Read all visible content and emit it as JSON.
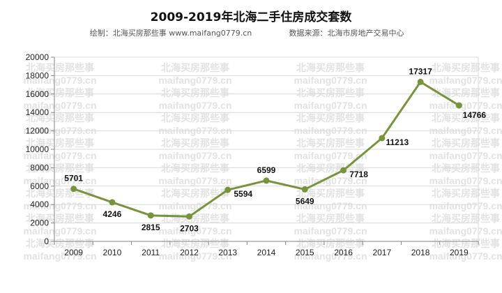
{
  "header": {
    "title": "2009-2019年北海二手住房成交套数",
    "credit": "绘制：北海买房那些事 www.maifang0779.cn",
    "source": "数据来源：北海市房地产交易中心"
  },
  "watermark": {
    "line1": "北海买房那些事",
    "line2": "maifang0779.cn"
  },
  "colors": {
    "series": "#77933c",
    "grid": "#d9d9d9",
    "axis": "#868686"
  },
  "chart_data": {
    "type": "line",
    "title": "2009-2019年北海二手住房成交套数",
    "x": [
      "2009",
      "2010",
      "2011",
      "2012",
      "2013",
      "2014",
      "2015",
      "2016",
      "2017",
      "2018",
      "2019"
    ],
    "series": [
      {
        "values": [
          5701,
          4246,
          2815,
          2703,
          5594,
          6599,
          5649,
          7718,
          11213,
          17317,
          14766
        ]
      }
    ],
    "ylim": [
      0,
      20000
    ],
    "yticks": [
      0,
      2000,
      4000,
      6000,
      8000,
      10000,
      12000,
      14000,
      16000,
      18000,
      20000
    ],
    "grid": true,
    "legend": "none",
    "markers": true,
    "data_labels": true
  }
}
